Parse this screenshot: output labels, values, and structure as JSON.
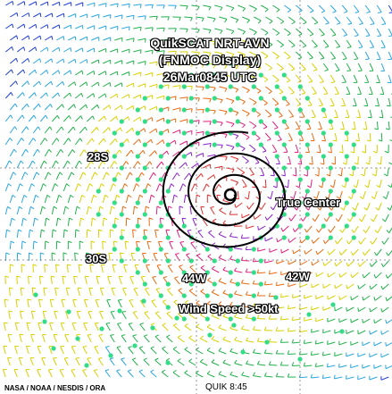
{
  "title": {
    "line1": "QuikSCAT NRT-AVN",
    "line2": "(FNMOC Display)",
    "line3": "26Mar0845 UTC"
  },
  "annotations": {
    "true_center": "True Center",
    "wind_speed": "Wind Speed >50kt"
  },
  "grid_labels": {
    "lat_28s": "28S",
    "lat_30s": "30S",
    "lon_44w": "44W",
    "lon_42w": "42W"
  },
  "footer": {
    "credit": "NASA / NOAA / NESDIS / ORA",
    "pass": "QUIK  8:45"
  },
  "colors": {
    "barb_palette": [
      "#1f3fd8",
      "#2aa6e0",
      "#22b14c",
      "#d8d000",
      "#e86a10",
      "#e0207c",
      "#8a22c8",
      "#e03030"
    ],
    "high_wind_dots": "#33dd88",
    "center_spiral": "#000000",
    "grid": "#7a7a7a"
  },
  "icons": {
    "center_marker": "spiral-center-icon"
  }
}
